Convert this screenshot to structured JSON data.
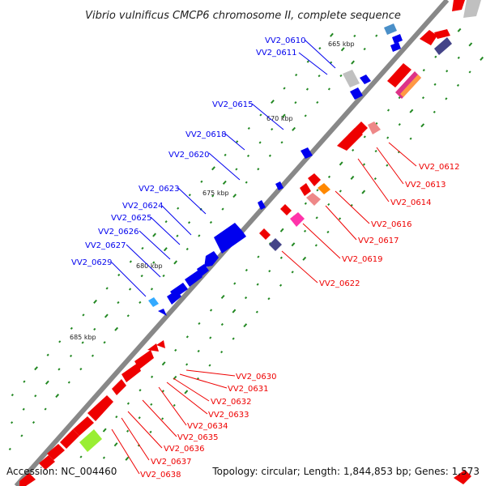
{
  "title": "Vibrio vulnificus CMCP6 chromosome II, complete sequence",
  "footer": {
    "accession": "Accession: NC_004460",
    "topology": "Topology: circular; Length: 1,844,853 bp; Genes: 1,573"
  },
  "colors": {
    "forward": "#0000ee",
    "reverse": "#ee0000",
    "backbone": "#888888",
    "tick": "#228822"
  },
  "kbp_markers": [
    "665 kbp",
    "670 kbp",
    "675 kbp",
    "680 kbp",
    "685 kbp"
  ],
  "forward_labels": [
    "VV2_0610",
    "VV2_0611",
    "VV2_0615",
    "VV2_0618",
    "VV2_0620",
    "VV2_0623",
    "VV2_0624",
    "VV2_0625",
    "VV2_0626",
    "VV2_0627",
    "VV2_0629"
  ],
  "reverse_labels": [
    "VV2_0612",
    "VV2_0613",
    "VV2_0614",
    "VV2_0616",
    "VV2_0617",
    "VV2_0619",
    "VV2_0622",
    "VV2_0630",
    "VV2_0631",
    "VV2_0632",
    "VV2_0633",
    "VV2_0634",
    "VV2_0635",
    "VV2_0636",
    "VV2_0637",
    "VV2_0638"
  ]
}
